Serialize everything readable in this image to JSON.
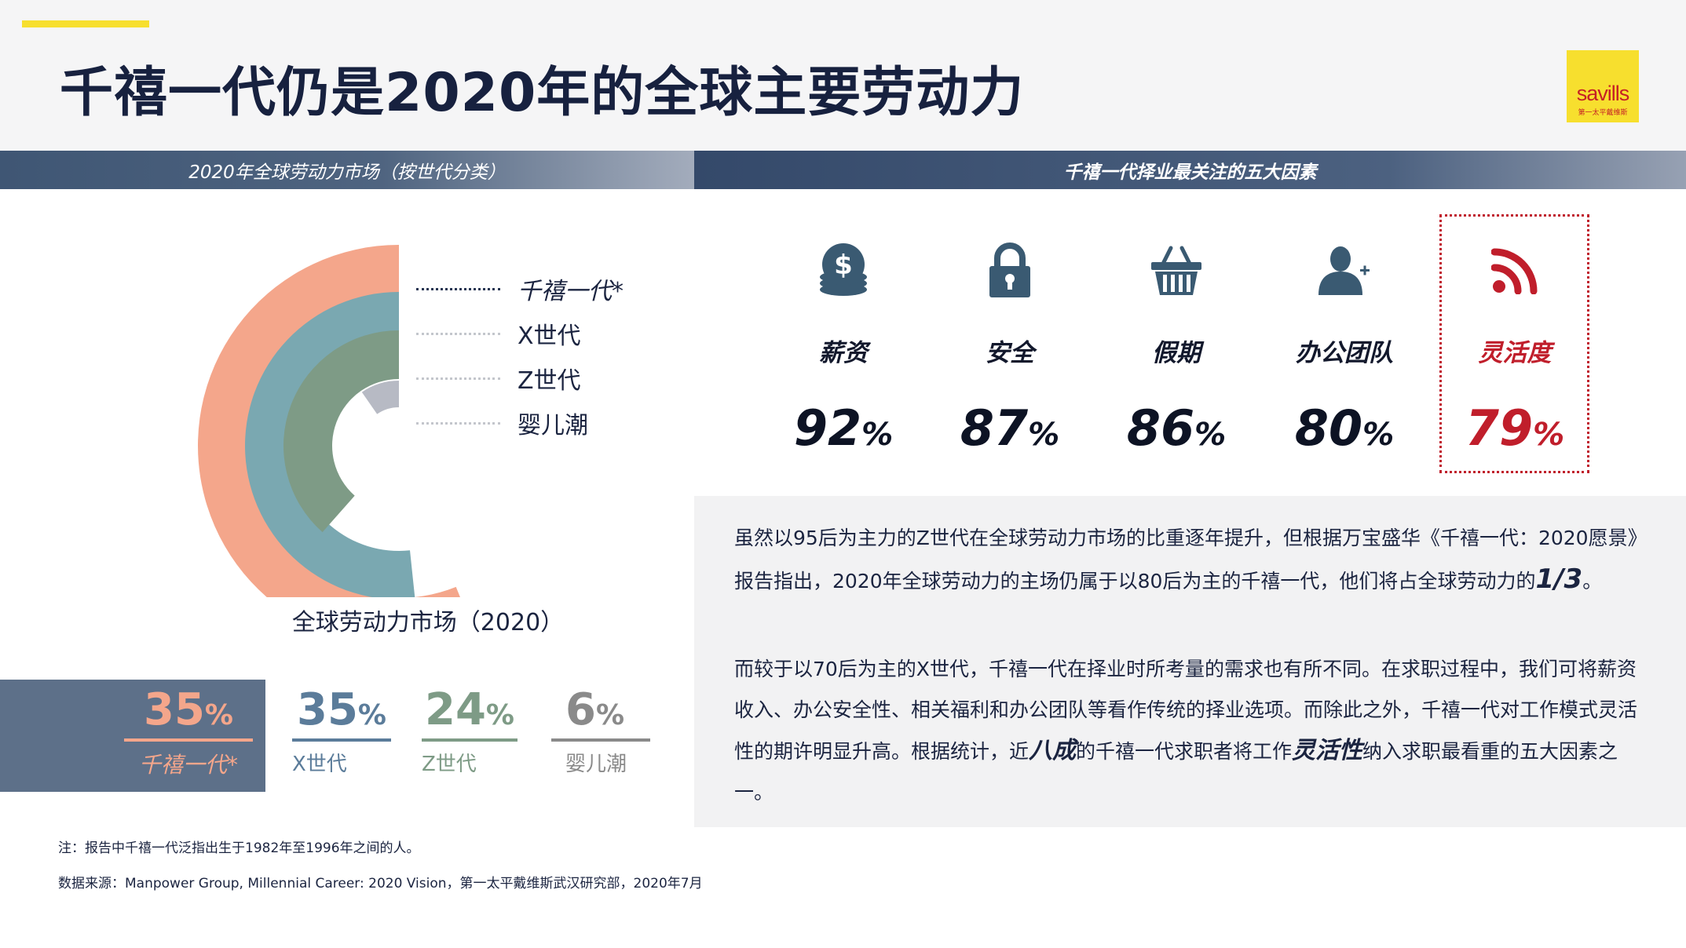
{
  "header": {
    "title": "千禧一代仍是2020年的全球主要劳动力",
    "logo_text": "savills",
    "logo_subtext": "第一太平戴维斯"
  },
  "left_section": {
    "heading": "2020年全球劳动力市场（按世代分类）",
    "chart_caption": "全球劳动力市场（2020）"
  },
  "right_section": {
    "heading": "千禧一代择业最关注的五大因素"
  },
  "chart_data": {
    "type": "radial-bar",
    "title": "全球劳动力市场（2020）",
    "categories": [
      "千禧一代*",
      "X世代",
      "Z世代",
      "婴儿潮"
    ],
    "values": [
      35,
      35,
      24,
      6
    ],
    "unit": "%",
    "colors": [
      "#f4a68b",
      "#7aa8b1",
      "#7e9b86",
      "#b7bac4"
    ],
    "legend_position": "right"
  },
  "legend": [
    {
      "label": "千禧一代*"
    },
    {
      "label": "X世代"
    },
    {
      "label": "Z世代"
    },
    {
      "label": "婴儿潮"
    }
  ],
  "stats": [
    {
      "value": "35",
      "pct": "%",
      "label": "千禧一代*",
      "color": "#f4a68b",
      "label_color": "#f4a68b"
    },
    {
      "value": "35",
      "pct": "%",
      "label": "X世代",
      "color": "#5b7c9a",
      "label_color": "#5b7c9a"
    },
    {
      "value": "24",
      "pct": "%",
      "label": "Z世代",
      "color": "#7e9b86",
      "label_color": "#7e9b86"
    },
    {
      "value": "6",
      "pct": "%",
      "label": "婴儿潮",
      "color": "#8a8a8a",
      "label_color": "#8a8a8a"
    }
  ],
  "factors": [
    {
      "icon": "money-icon",
      "label": "薪资",
      "value": "92",
      "pct": "%"
    },
    {
      "icon": "lock-icon",
      "label": "安全",
      "value": "87",
      "pct": "%"
    },
    {
      "icon": "basket-icon",
      "label": "假期",
      "value": "86",
      "pct": "%"
    },
    {
      "icon": "user-add-icon",
      "label": "办公团队",
      "value": "80",
      "pct": "%"
    },
    {
      "icon": "rss-icon",
      "label": "灵活度",
      "value": "79",
      "pct": "%",
      "highlight_color": "#c01e2b"
    }
  ],
  "paragraphs": {
    "p1_a": "虽然以95后为主力的Z世代在全球劳动力市场的比重逐年提升，但根据万宝盛华《千禧一代：2020愿景》报告指出，2020年全球劳动力的主场仍属于以80后为主的千禧一代，他们将占全球劳动力的",
    "p1_em": "1/3",
    "p1_b": "。",
    "p2_a": "而较于以70后为主的X世代，千禧一代在择业时所考量的需求也有所不同。在求职过程中，我们可将薪资收入、办公安全性、相关福利和办公团队等看作传统的择业选项。而除此之外，千禧一代对工作模式灵活性的期许明显升高。根据统计，近",
    "p2_em1": "八成",
    "p2_b": "的千禧一代求职者将工作",
    "p2_em2": "灵活性",
    "p2_c": "纳入求职最看重的五大因素之一。"
  },
  "notes": {
    "note": "注：报告中千禧一代泛指出生于1982年至1996年之间的人。",
    "source": "数据来源：Manpower Group, Millennial Career: 2020 Vision，第一太平戴维斯武汉研究部，2020年7月"
  }
}
